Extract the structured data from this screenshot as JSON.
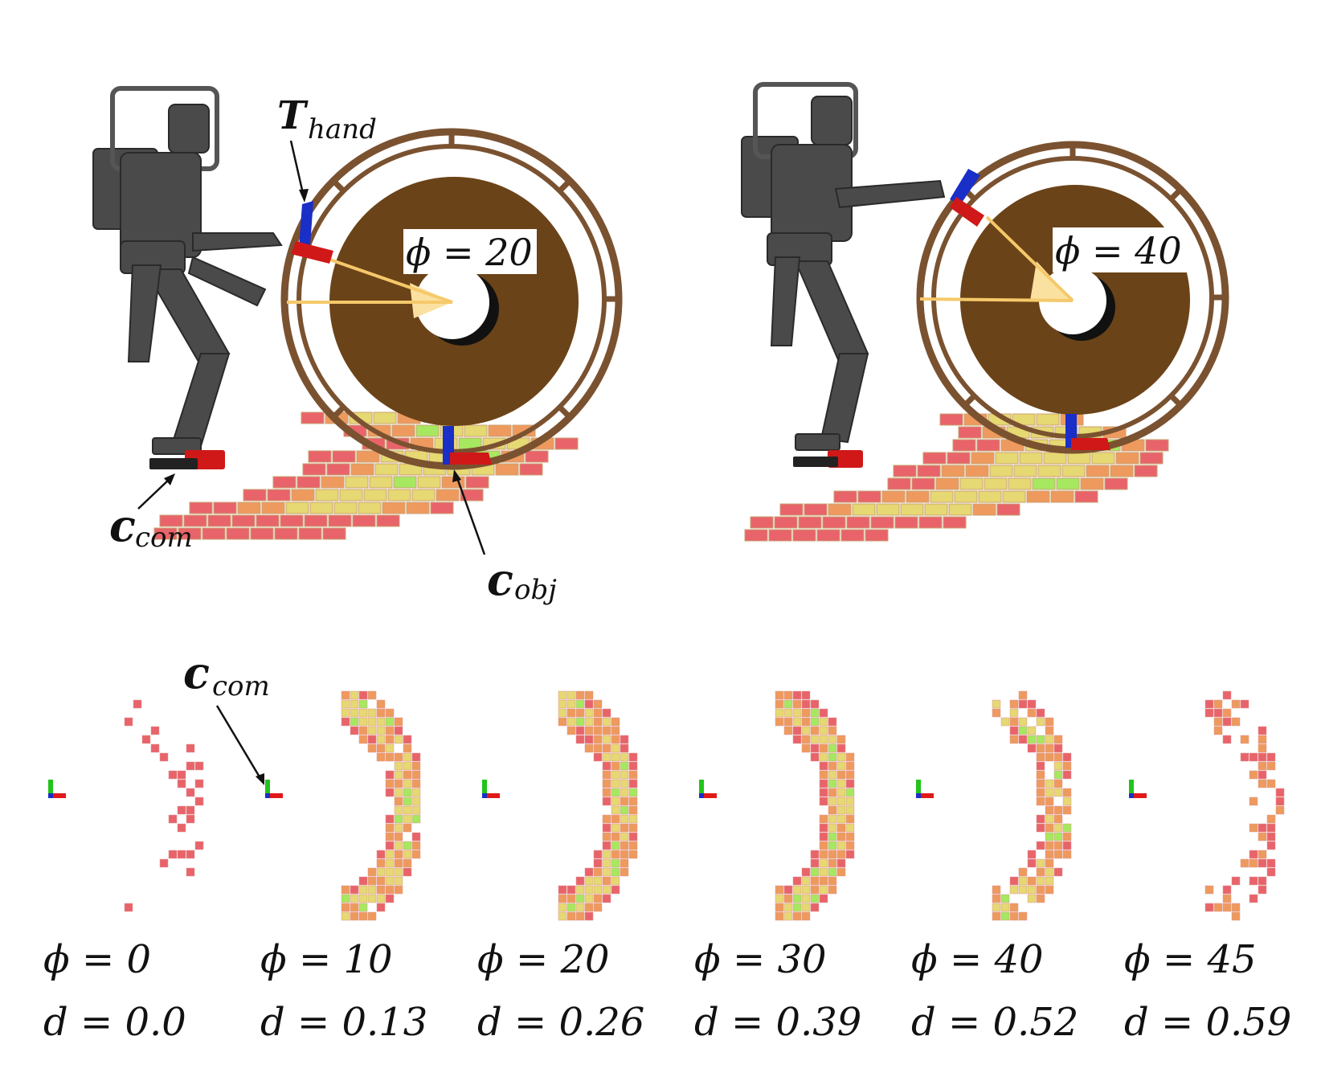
{
  "top_panels": [
    {
      "phi_label": "ϕ = 20",
      "annotations": [
        {
          "symbol": "T",
          "subscript": "hand"
        },
        {
          "symbol": "c",
          "subscript": "com"
        },
        {
          "symbol": "c",
          "subscript": "obj"
        }
      ]
    },
    {
      "phi_label": "ϕ = 40",
      "annotations": []
    }
  ],
  "bottom_annotation": {
    "symbol": "c",
    "subscript": "com"
  },
  "colors": {
    "wheel_brown": "#6b4318",
    "rim_brown": "#7a5230",
    "robot_gray": "#4a4a4a",
    "cell_red": "#e8646a",
    "cell_orange": "#ee9a5e",
    "cell_yellow": "#e6d872",
    "cell_green": "#a6e860",
    "hand_red": "#d01818",
    "hand_blue": "#1a2ec8",
    "wedge_fill": "#fbe1a0"
  },
  "maps": [
    {
      "phi": "ϕ = 0",
      "d": "d = 0.0",
      "density": 0.15
    },
    {
      "phi": "ϕ = 10",
      "d": "d = 0.13",
      "density": 0.9
    },
    {
      "phi": "ϕ = 20",
      "d": "d = 0.26",
      "density": 1.0
    },
    {
      "phi": "ϕ = 30",
      "d": "d = 0.39",
      "density": 1.0
    },
    {
      "phi": "ϕ = 40",
      "d": "d = 0.52",
      "density": 0.7
    },
    {
      "phi": "ϕ = 45",
      "d": "d = 0.59",
      "density": 0.35
    }
  ]
}
